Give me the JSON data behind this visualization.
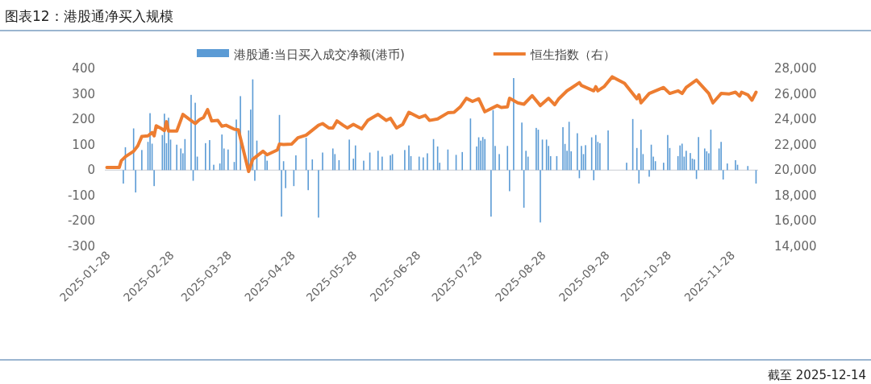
{
  "chart_data": {
    "type": "bar",
    "title": "图表12：港股通净买入规模",
    "annotations": [
      "截至 2025-12-14"
    ],
    "legend": "top",
    "xlim": [
      "2025-01-25",
      "2025-12-09"
    ],
    "xticks": [
      "2025-01-28",
      "2025-02-28",
      "2025-03-28",
      "2025-04-28",
      "2025-05-28",
      "2025-06-28",
      "2025-07-28",
      "2025-08-28",
      "2025-09-28",
      "2025-10-28",
      "2025-11-28"
    ],
    "ylim": [
      -300,
      400
    ],
    "yticks": [
      -300,
      -200,
      -100,
      0,
      100,
      200,
      300,
      400
    ],
    "y2lim": [
      14000,
      28000
    ],
    "y2ticks": [
      {
        "value": 14000,
        "label": "14,000"
      },
      {
        "value": 16000,
        "label": "16,000"
      },
      {
        "value": 18000,
        "label": "18,000"
      },
      {
        "value": 20000,
        "label": "20,000"
      },
      {
        "value": 22000,
        "label": "22,000"
      },
      {
        "value": 24000,
        "label": "24,000"
      },
      {
        "value": 26000,
        "label": "26,000"
      },
      {
        "value": 28000,
        "label": "28,000"
      }
    ],
    "series": [
      {
        "name": "港股通:当日买入成交净额(港币)",
        "color": "#5b9bd5",
        "x": [
          "2025-02-03",
          "2025-02-04",
          "2025-02-08",
          "2025-02-09",
          "2025-02-12",
          "2025-02-15",
          "2025-02-16",
          "2025-02-17",
          "2025-02-18",
          "2025-02-22",
          "2025-02-23",
          "2025-02-24",
          "2025-02-25",
          "2025-02-26",
          "2025-03-01",
          "2025-03-03",
          "2025-03-04",
          "2025-03-05",
          "2025-03-08",
          "2025-03-09",
          "2025-03-10",
          "2025-03-11",
          "2025-03-15",
          "2025-03-17",
          "2025-03-19",
          "2025-03-22",
          "2025-03-23",
          "2025-03-24",
          "2025-03-26",
          "2025-03-29",
          "2025-03-30",
          "2025-04-01",
          "2025-04-05",
          "2025-04-06",
          "2025-04-07",
          "2025-04-08",
          "2025-04-09",
          "2025-04-13",
          "2025-04-14",
          "2025-04-20",
          "2025-04-21",
          "2025-04-22",
          "2025-04-23",
          "2025-04-27",
          "2025-04-28",
          "2025-05-03",
          "2025-05-04",
          "2025-05-06",
          "2025-05-09",
          "2025-05-11",
          "2025-05-16",
          "2025-05-17",
          "2025-05-19",
          "2025-05-24",
          "2025-05-26",
          "2025-05-27",
          "2025-05-31",
          "2025-06-03",
          "2025-06-07",
          "2025-06-09",
          "2025-06-13",
          "2025-06-14",
          "2025-06-20",
          "2025-06-22",
          "2025-06-23",
          "2025-06-27",
          "2025-06-29",
          "2025-07-01",
          "2025-07-04",
          "2025-07-06",
          "2025-07-07",
          "2025-07-11",
          "2025-07-15",
          "2025-07-18",
          "2025-07-22",
          "2025-07-25",
          "2025-07-26",
          "2025-07-27",
          "2025-07-28",
          "2025-07-29",
          "2025-08-01",
          "2025-08-02",
          "2025-08-03",
          "2025-08-05",
          "2025-08-09",
          "2025-08-10",
          "2025-08-12",
          "2025-08-16",
          "2025-08-17",
          "2025-08-18",
          "2025-08-19",
          "2025-08-23",
          "2025-08-24",
          "2025-08-25",
          "2025-08-26",
          "2025-08-28",
          "2025-08-29",
          "2025-08-30",
          "2025-09-02",
          "2025-09-05",
          "2025-09-06",
          "2025-09-07",
          "2025-09-08",
          "2025-09-09",
          "2025-09-12",
          "2025-09-13",
          "2025-09-14",
          "2025-09-15",
          "2025-09-16",
          "2025-09-19",
          "2025-09-20",
          "2025-09-21",
          "2025-09-22",
          "2025-09-23",
          "2025-09-27",
          "2025-10-06",
          "2025-10-09",
          "2025-10-11",
          "2025-10-12",
          "2025-10-13",
          "2025-10-14",
          "2025-10-17",
          "2025-10-18",
          "2025-10-19",
          "2025-10-20",
          "2025-10-24",
          "2025-10-26",
          "2025-10-27",
          "2025-10-31",
          "2025-11-01",
          "2025-11-02",
          "2025-11-03",
          "2025-11-04",
          "2025-11-06",
          "2025-11-07",
          "2025-11-08",
          "2025-11-09",
          "2025-11-10",
          "2025-11-13",
          "2025-11-14",
          "2025-11-15",
          "2025-11-16",
          "2025-11-20",
          "2025-11-21",
          "2025-11-22",
          "2025-11-24",
          "2025-11-28",
          "2025-11-29",
          "2025-12-04",
          "2025-12-08"
        ],
        "values": [
          -53,
          90,
          164,
          -88,
          79,
          111,
          224,
          104,
          -63,
          138,
          222,
          106,
          206,
          120,
          100,
          85,
          66,
          122,
          296,
          -42,
          265,
          53,
          106,
          118,
          21,
          26,
          140,
          85,
          81,
          32,
          199,
          291,
          156,
          238,
          357,
          -42,
          116,
          58,
          37,
          217,
          -183,
          35,
          -71,
          -63,
          58,
          127,
          -79,
          42,
          -187,
          69,
          85,
          63,
          39,
          120,
          45,
          97,
          37,
          69,
          76,
          53,
          58,
          63,
          79,
          97,
          55,
          53,
          50,
          66,
          122,
          93,
          29,
          81,
          60,
          71,
          203,
          93,
          129,
          116,
          130,
          122,
          -183,
          236,
          95,
          63,
          95,
          -83,
          362,
          187,
          -148,
          76,
          53,
          166,
          159,
          -206,
          120,
          120,
          95,
          55,
          55,
          169,
          103,
          76,
          190,
          74,
          145,
          -32,
          95,
          63,
          98,
          129,
          -40,
          138,
          111,
          106,
          156,
          29,
          201,
          87,
          -53,
          159,
          63,
          -26,
          100,
          53,
          35,
          29,
          138,
          87,
          55,
          97,
          104,
          53,
          76,
          67,
          45,
          42,
          -35,
          130,
          85,
          74,
          66,
          159,
          85,
          111,
          -37,
          26,
          39,
          21,
          16,
          -53
        ]
      },
      {
        "name": "恒生指数（右）",
        "type": "line",
        "axis": "y2",
        "color": "#ed7d31",
        "x": [
          "2025-01-26",
          "2025-02-01",
          "2025-02-02",
          "2025-02-04",
          "2025-02-08",
          "2025-02-10",
          "2025-02-12",
          "2025-02-15",
          "2025-02-17",
          "2025-02-18",
          "2025-02-19",
          "2025-02-21",
          "2025-02-23",
          "2025-02-24",
          "2025-02-25",
          "2025-03-01",
          "2025-03-04",
          "2025-03-07",
          "2025-03-10",
          "2025-03-12",
          "2025-03-14",
          "2025-03-16",
          "2025-03-18",
          "2025-03-21",
          "2025-03-23",
          "2025-03-25",
          "2025-03-29",
          "2025-03-31",
          "2025-04-05",
          "2025-04-07",
          "2025-04-12",
          "2025-04-14",
          "2025-04-19",
          "2025-04-20",
          "2025-04-22",
          "2025-04-26",
          "2025-04-29",
          "2025-05-03",
          "2025-05-09",
          "2025-05-11",
          "2025-05-14",
          "2025-05-16",
          "2025-05-18",
          "2025-05-21",
          "2025-05-23",
          "2025-05-26",
          "2025-05-30",
          "2025-06-02",
          "2025-06-07",
          "2025-06-11",
          "2025-06-13",
          "2025-06-16",
          "2025-06-19",
          "2025-06-22",
          "2025-06-27",
          "2025-06-30",
          "2025-07-02",
          "2025-07-06",
          "2025-07-11",
          "2025-07-14",
          "2025-07-17",
          "2025-07-20",
          "2025-07-23",
          "2025-07-26",
          "2025-07-29",
          "2025-08-04",
          "2025-08-06",
          "2025-08-09",
          "2025-08-10",
          "2025-08-14",
          "2025-08-17",
          "2025-08-21",
          "2025-08-25",
          "2025-08-29",
          "2025-09-01",
          "2025-09-03",
          "2025-09-07",
          "2025-09-09",
          "2025-09-13",
          "2025-09-14",
          "2025-09-20",
          "2025-09-21",
          "2025-09-22",
          "2025-09-25",
          "2025-09-29",
          "2025-10-05",
          "2025-10-11",
          "2025-10-12",
          "2025-10-13",
          "2025-10-17",
          "2025-10-24",
          "2025-10-27",
          "2025-10-31",
          "2025-11-02",
          "2025-11-04",
          "2025-11-09",
          "2025-11-15",
          "2025-11-17",
          "2025-11-21",
          "2025-11-25",
          "2025-11-28",
          "2025-11-30",
          "2025-12-01",
          "2025-12-04",
          "2025-12-06",
          "2025-12-08"
        ],
        "values": [
          20200,
          20200,
          20740,
          21060,
          21480,
          21900,
          22640,
          22690,
          22960,
          22690,
          23490,
          23320,
          23110,
          23810,
          23070,
          23070,
          24380,
          24020,
          23660,
          23960,
          24130,
          24760,
          23870,
          23910,
          23450,
          23530,
          23220,
          23170,
          19890,
          20850,
          21480,
          21210,
          21590,
          22050,
          22010,
          22050,
          22540,
          22750,
          23530,
          23660,
          23320,
          23320,
          23870,
          23530,
          23320,
          23600,
          23240,
          23910,
          24380,
          23910,
          24080,
          23320,
          23600,
          24550,
          24130,
          24300,
          23910,
          24020,
          24510,
          24550,
          24970,
          25650,
          25400,
          25610,
          24590,
          25080,
          24930,
          24970,
          25650,
          25290,
          25180,
          25860,
          25080,
          25650,
          25140,
          25610,
          26240,
          26450,
          26880,
          26660,
          26240,
          26560,
          26240,
          26560,
          27340,
          26830,
          25610,
          25920,
          25290,
          26030,
          26500,
          26030,
          26240,
          26030,
          26500,
          27090,
          26030,
          25290,
          26030,
          25990,
          26130,
          25820,
          26130,
          25920,
          25500,
          26130
        ]
      }
    ]
  }
}
